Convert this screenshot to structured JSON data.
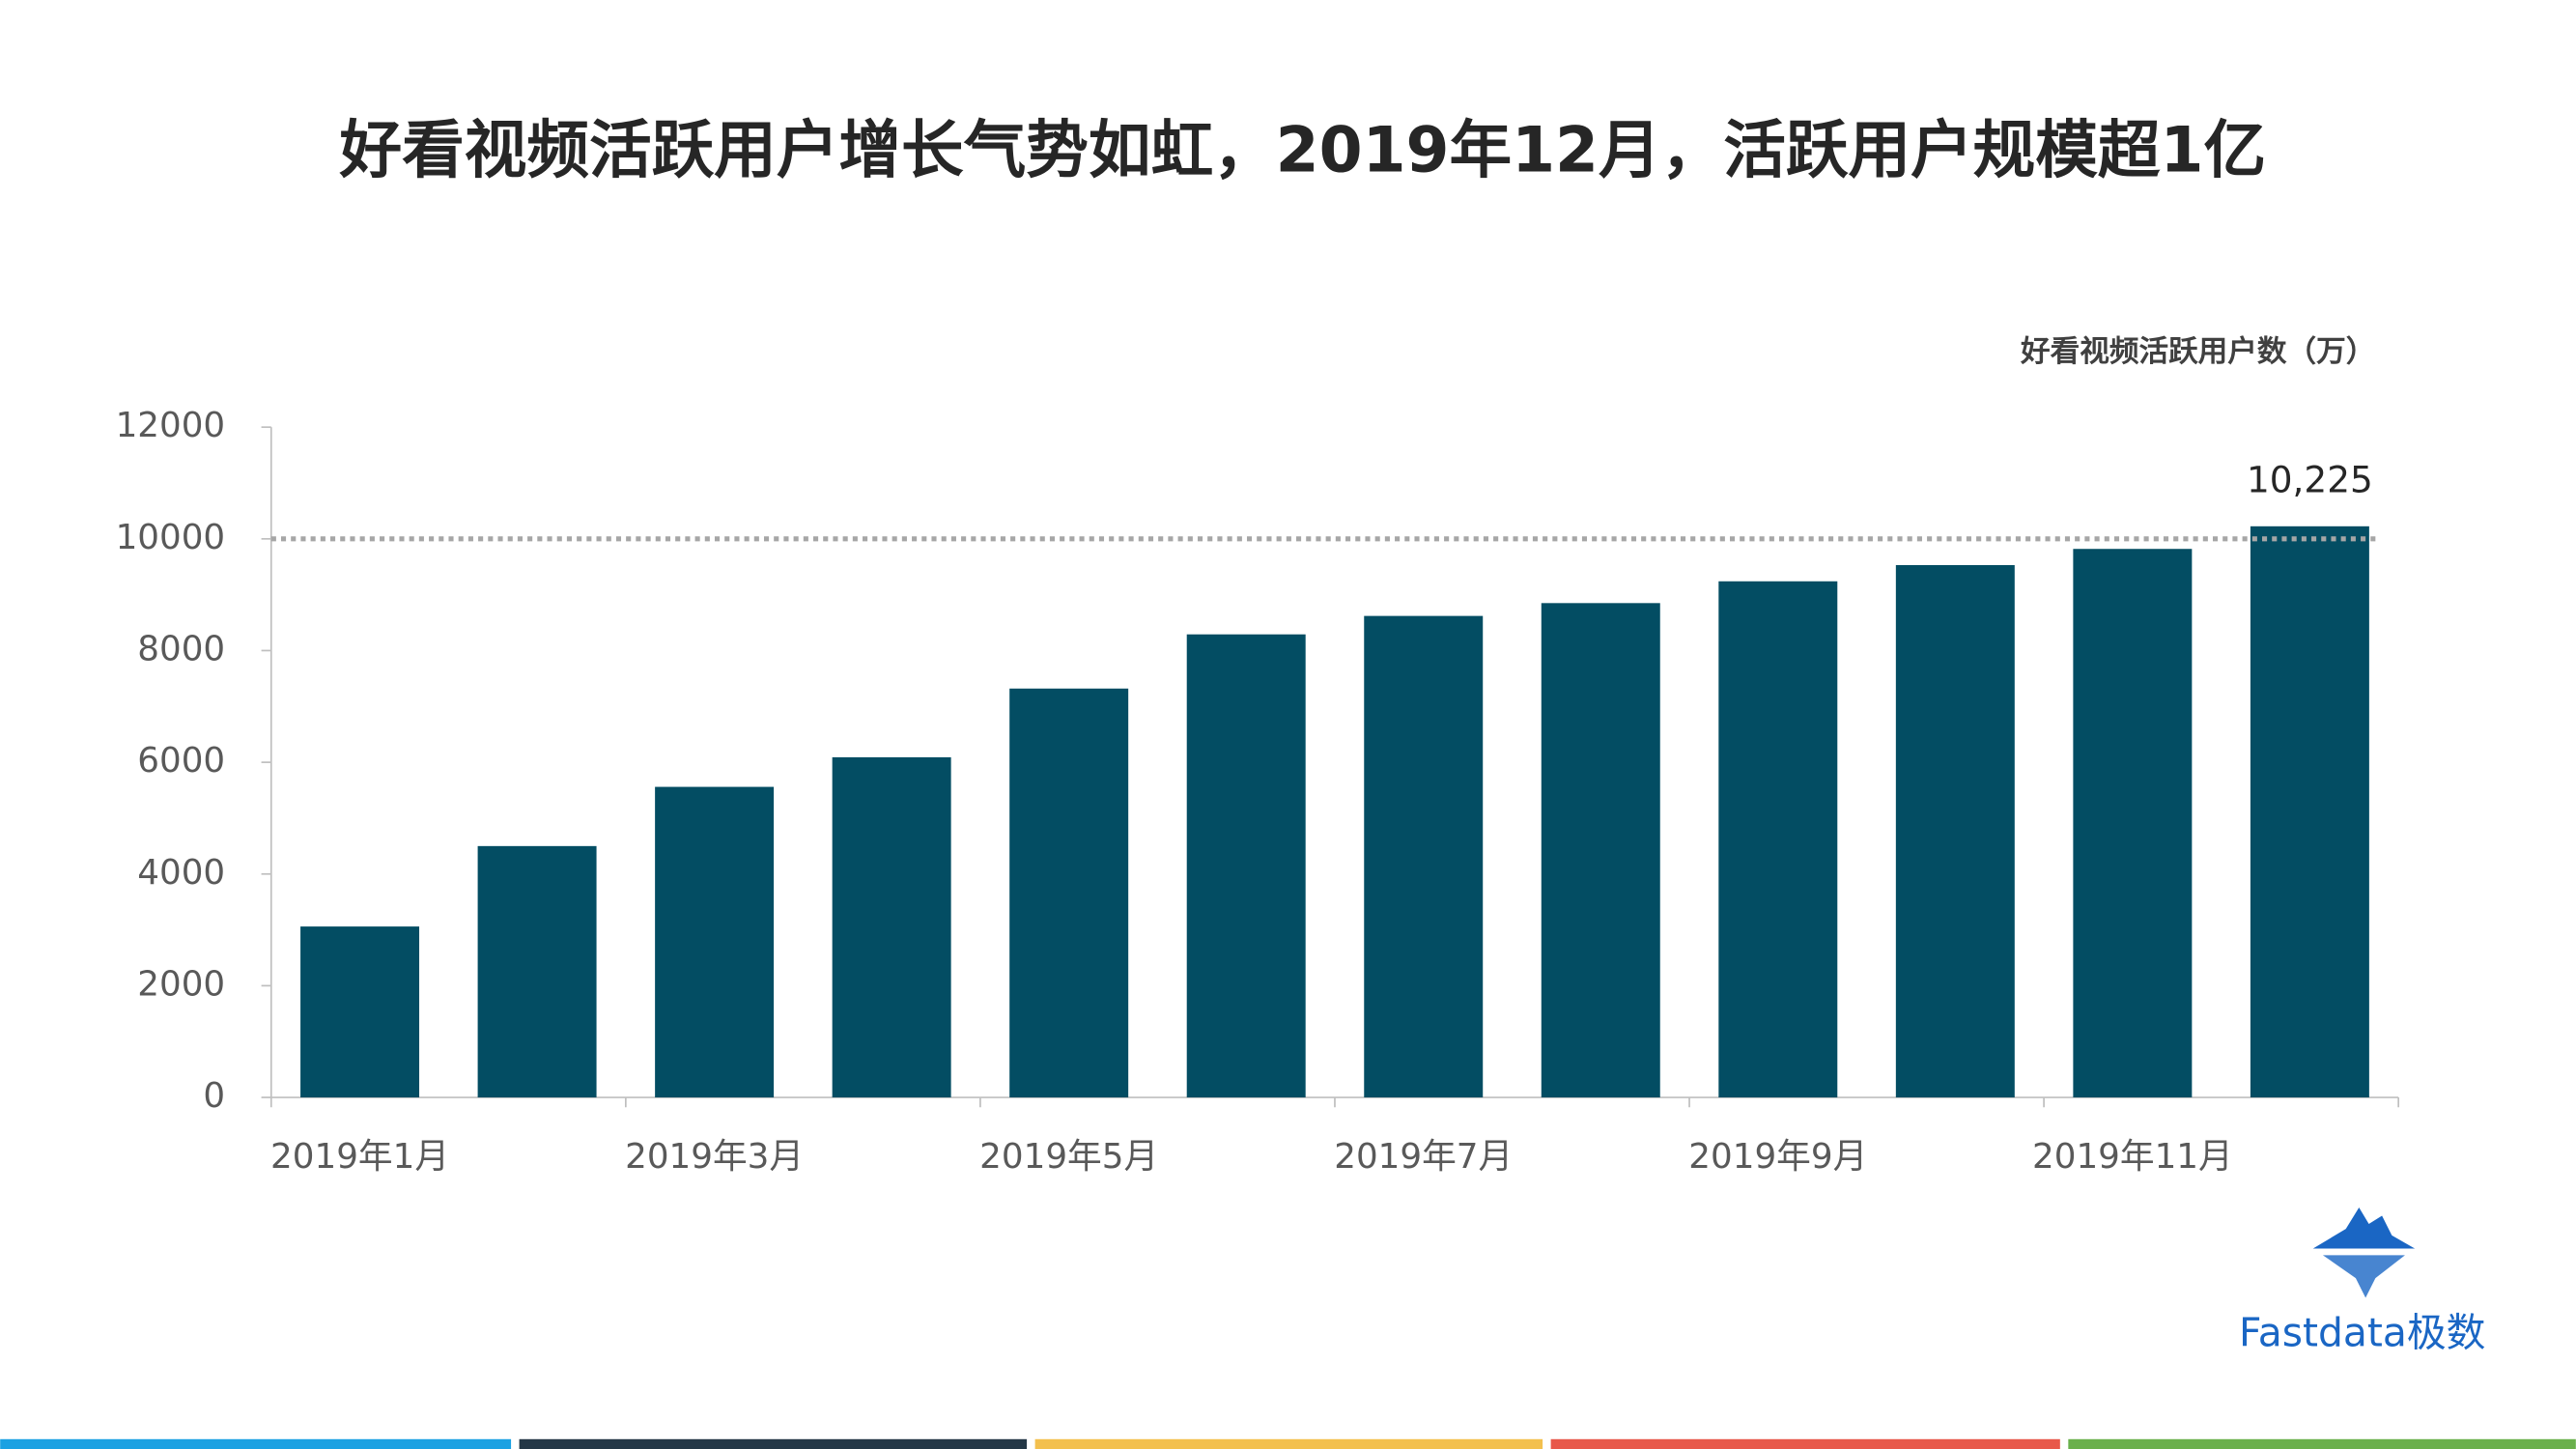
{
  "chart_data": {
    "type": "bar",
    "title": "好看视频活跃用户增长气势如虹，2019年12月，活跃用户规模超1亿",
    "categories": [
      "2019年1月",
      null,
      "2019年3月",
      null,
      "2019年5月",
      null,
      "2019年7月",
      null,
      "2019年9月",
      null,
      "2019年11月",
      null
    ],
    "series": [
      {
        "name": "好看视频活跃用户数（万）",
        "color": "#034d63",
        "values": [
          3060,
          4500,
          5560,
          6090,
          7320,
          8290,
          8620,
          8850,
          9240,
          9530,
          9820,
          10225
        ],
        "value_labels": [
          null,
          null,
          null,
          null,
          null,
          null,
          null,
          null,
          null,
          null,
          null,
          "10,225"
        ]
      }
    ],
    "ylim": [
      0,
      12000
    ],
    "yticks": [
      0,
      2000,
      4000,
      6000,
      8000,
      10000,
      12000
    ],
    "reference_line": 10000,
    "grid": false,
    "brand": "Fastdata极数"
  }
}
